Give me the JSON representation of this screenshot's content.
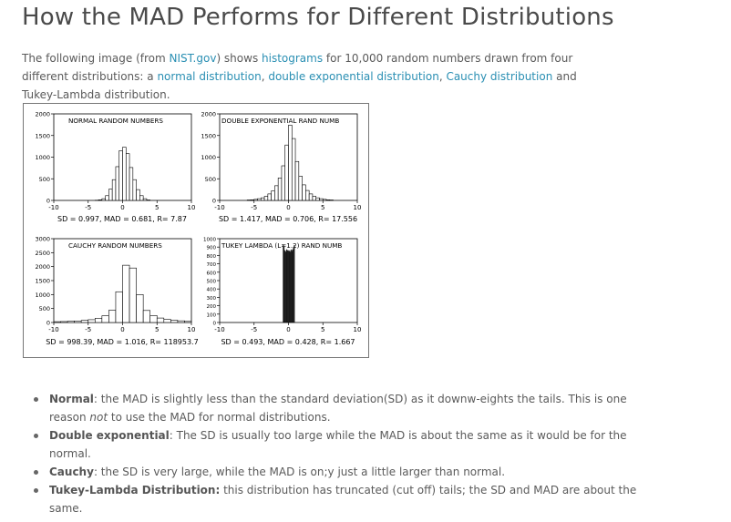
{
  "page": {
    "title": "How the MAD Performs for Different Distributions",
    "intro": {
      "p1": "The following image (from ",
      "link_nist": "NIST.gov",
      "p2": ") shows ",
      "link_histograms": "histograms",
      "p3": " for 10,000 random numbers drawn from four different distributions: a ",
      "link_normal": "normal distribution",
      "p4": ", ",
      "link_double_exp": "double exponential distribution",
      "p5": ", ",
      "link_cauchy": "Cauchy distribution",
      "p6": " and Tukey-Lambda distribution."
    },
    "bullets": [
      {
        "term": "Normal",
        "text_a": ": the MAD is slightly less than the standard deviation(SD) as it downw-eights the tails. This is one reason ",
        "em": "not",
        "text_b": " to use the MAD for normal distributions."
      },
      {
        "term": "Double exponential",
        "text_a": ": The SD is usually too large while the MAD is about the same as it would be for the normal.",
        "em": "",
        "text_b": ""
      },
      {
        "term": "Cauchy",
        "text_a": ": the SD is very large, while the MAD is on;y just a little larger than normal.",
        "em": "",
        "text_b": ""
      },
      {
        "term": "Tukey-Lambda Distribution:",
        "text_a": " this distribution has truncated (cut off) tails; the SD and MAD are about the same.",
        "em": "",
        "text_b": ""
      }
    ]
  },
  "chart_data": [
    {
      "type": "bar",
      "title": "NORMAL RANDOM NUMBERS",
      "caption": "SD = 0.997, MAD = 0.681, R= 7.87",
      "xlim": [
        -10,
        10
      ],
      "ylim": [
        0,
        2000
      ],
      "xticks": [
        "-10",
        "-5",
        "0",
        "5",
        "10"
      ],
      "yticks": [
        "0",
        "500",
        "1000",
        "1500",
        "2000"
      ],
      "bin_width": 0.5,
      "fill": "open",
      "x": [
        -4,
        -3.5,
        -3,
        -2.5,
        -2,
        -1.5,
        -1,
        -0.5,
        0,
        0.5,
        1,
        1.5,
        2,
        2.5,
        3,
        3.5
      ],
      "values": [
        5,
        15,
        40,
        110,
        260,
        480,
        780,
        1150,
        1230,
        1080,
        760,
        480,
        250,
        110,
        40,
        10
      ]
    },
    {
      "type": "bar",
      "title": "DOUBLE EXPONENTIAL RAND NUMB",
      "caption": "SD = 1.417, MAD = 0.706, R= 17.556",
      "xlim": [
        -10,
        10
      ],
      "ylim": [
        0,
        2000
      ],
      "xticks": [
        "-10",
        "-5",
        "0",
        "5",
        "10"
      ],
      "yticks": [
        "0",
        "500",
        "1000",
        "1500",
        "2000"
      ],
      "bin_width": 0.5,
      "fill": "open",
      "x": [
        -6,
        -5.5,
        -5,
        -4.5,
        -4,
        -3.5,
        -3,
        -2.5,
        -2,
        -1.5,
        -1,
        -0.5,
        0,
        0.5,
        1,
        1.5,
        2,
        2.5,
        3,
        3.5,
        4,
        4.5,
        5,
        5.5,
        6
      ],
      "values": [
        10,
        15,
        25,
        40,
        60,
        95,
        150,
        220,
        340,
        520,
        800,
        1280,
        1740,
        1430,
        900,
        560,
        360,
        230,
        150,
        95,
        60,
        40,
        25,
        15,
        10
      ]
    },
    {
      "type": "bar",
      "title": "CAUCHY RANDOM NUMBERS",
      "caption": "SD = 998.39, MAD = 1.016, R= 118953.7",
      "xlim": [
        -10,
        10
      ],
      "ylim": [
        0,
        3000
      ],
      "xticks": [
        "-10",
        "-5",
        "0",
        "5",
        "10"
      ],
      "yticks": [
        "0",
        "500",
        "1000",
        "1500",
        "2000",
        "2500",
        "3000"
      ],
      "bin_width": 1,
      "fill": "open",
      "x": [
        -10,
        -9,
        -8,
        -7,
        -6,
        -5,
        -4,
        -3,
        -2,
        -1,
        0,
        1,
        2,
        3,
        4,
        5,
        6,
        7,
        8,
        9
      ],
      "values": [
        30,
        35,
        45,
        55,
        75,
        100,
        150,
        240,
        440,
        1100,
        2050,
        1950,
        1000,
        430,
        250,
        160,
        110,
        80,
        60,
        40
      ]
    },
    {
      "type": "bar",
      "title": "TUKEY LAMBDA (L=1.2) RAND NUMB",
      "caption": "SD = 0.493, MAD = 0.428, R= 1.667",
      "xlim": [
        -10,
        10
      ],
      "ylim": [
        0,
        1000
      ],
      "xticks": [
        "-10",
        "-5",
        "0",
        "5",
        "10"
      ],
      "yticks": [
        "0",
        "100",
        "200",
        "300",
        "400",
        "500",
        "600",
        "700",
        "800",
        "900",
        "1000"
      ],
      "bin_width": 0.1,
      "fill": "dense",
      "x": [
        -0.8,
        -0.7,
        -0.6,
        -0.5,
        -0.4,
        -0.3,
        -0.2,
        -0.1,
        0,
        0.1,
        0.2,
        0.3,
        0.4,
        0.5,
        0.6,
        0.7,
        0.8
      ],
      "values": [
        930,
        900,
        860,
        840,
        850,
        870,
        860,
        850,
        860,
        850,
        840,
        860,
        870,
        850,
        870,
        890,
        920
      ]
    }
  ]
}
